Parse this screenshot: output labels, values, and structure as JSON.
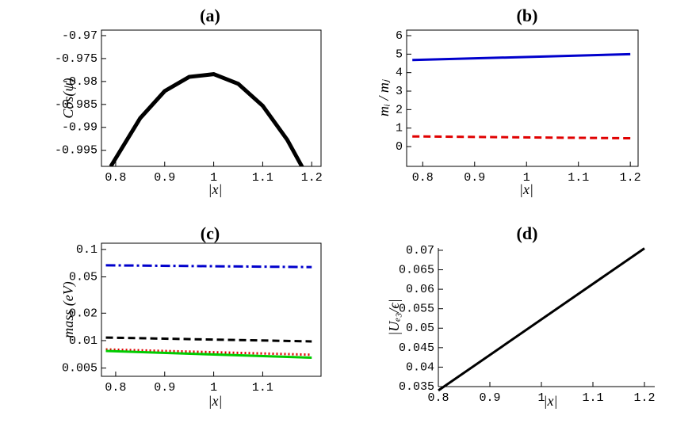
{
  "chart_data": [
    {
      "type": "line",
      "title": "(a)",
      "xlabel": "|x|",
      "ylabel": "Cos(ψ)",
      "xlim": [
        0.771,
        1.219
      ],
      "ylim": [
        -0.9985,
        -0.9688
      ],
      "xticks": [
        0.8,
        0.9,
        1,
        1.1,
        1.2
      ],
      "yticks": [
        -0.97,
        -0.975,
        -0.98,
        -0.985,
        -0.99,
        -0.995
      ],
      "frame": true,
      "log_y": false,
      "x": [
        0.79,
        0.85,
        0.9,
        0.95,
        1.0,
        1.05,
        1.1,
        1.15,
        1.185
      ],
      "series": [
        {
          "color": "#000000",
          "dash": "solid",
          "width": 5,
          "values": [
            -0.9985,
            -0.988,
            -0.9821,
            -0.979,
            -0.9784,
            -0.9805,
            -0.9853,
            -0.9927,
            -0.9995
          ]
        }
      ]
    },
    {
      "type": "line",
      "title": "(b)",
      "xlabel": "|x|",
      "ylabel": "mᵢ / mⱼ",
      "xlim": [
        0.769,
        1.215
      ],
      "ylim": [
        -1.07,
        6.3
      ],
      "xticks": [
        0.8,
        0.9,
        1,
        1.1,
        1.2
      ],
      "yticks": [
        0,
        1,
        2,
        3,
        4,
        5,
        6
      ],
      "frame": true,
      "log_y": false,
      "x": [
        0.78,
        1.2
      ],
      "series": [
        {
          "color": "#0000cc",
          "dash": "solid",
          "width": 3,
          "values": [
            4.68,
            5.0
          ]
        },
        {
          "color": "#e00000",
          "dash": "dashed",
          "width": 3,
          "values": [
            0.55,
            0.45
          ]
        }
      ]
    },
    {
      "type": "line",
      "title": "(c)",
      "xlabel": "|x|",
      "ylabel": "mass (eV)",
      "xlim": [
        0.771,
        1.219
      ],
      "ylim": [
        0.00406,
        0.117
      ],
      "xticks": [
        0.8,
        0.9,
        1,
        1.1
      ],
      "yticks": [
        0.1,
        0.05,
        0.02,
        0.01,
        0.005
      ],
      "frame": true,
      "log_y": true,
      "x": [
        0.78,
        1.2
      ],
      "series": [
        {
          "color": "#0000cc",
          "dash": "dashdot",
          "width": 3,
          "values": [
            0.067,
            0.064
          ]
        },
        {
          "color": "#000000",
          "dash": "dashed",
          "width": 3,
          "values": [
            0.0108,
            0.0098
          ]
        },
        {
          "color": "#e00000",
          "dash": "dotted",
          "width": 3,
          "values": [
            0.008,
            0.007
          ]
        },
        {
          "color": "#00cc00",
          "dash": "solid",
          "width": 3,
          "values": [
            0.0077,
            0.0065
          ]
        }
      ]
    },
    {
      "type": "line",
      "title": "(d)",
      "xlabel": "|x|",
      "ylabel": "|Uₑ₃/ϵ|",
      "xlim": [
        0.8,
        1.22
      ],
      "ylim": [
        0.035,
        0.0706
      ],
      "xticks": [
        0.8,
        0.9,
        1,
        1.1,
        1.2
      ],
      "yticks": [
        0.035,
        0.04,
        0.045,
        0.05,
        0.055,
        0.06,
        0.065,
        0.07
      ],
      "frame": false,
      "log_y": false,
      "x": [
        0.8,
        1.2
      ],
      "series": [
        {
          "color": "#000000",
          "dash": "solid",
          "width": 3,
          "values": [
            0.034,
            0.0705
          ]
        }
      ]
    }
  ]
}
